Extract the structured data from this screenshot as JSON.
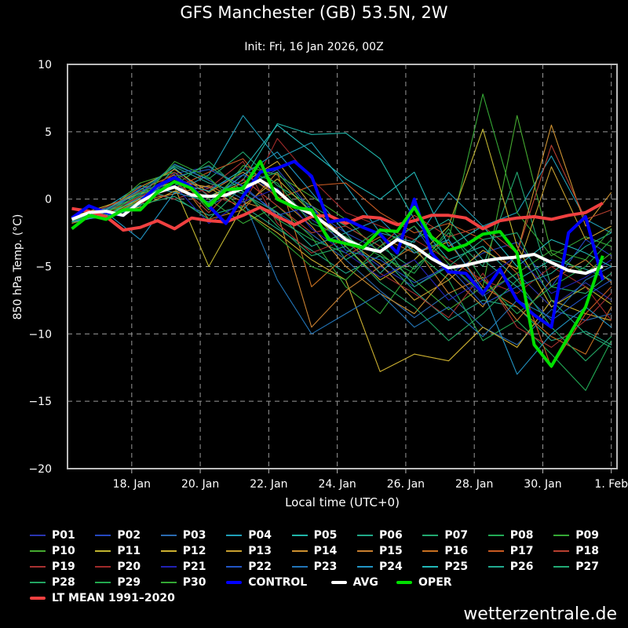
{
  "title": "GFS Manchester (GB) 53.5N, 2W",
  "subtitle": "Init: Fri, 16 Jan 2026, 00Z",
  "watermark": "wetterzentrale.de",
  "chart_data": {
    "type": "line",
    "xlabel": "Local time (UTC+0)",
    "ylabel": "850 hPa Temp. (°C)",
    "ylim": [
      -20,
      10
    ],
    "yticks": [
      10,
      5,
      0,
      -5,
      -10,
      -15,
      -20
    ],
    "xlim": [
      "2026-01-16T03",
      "2026-02-01T04"
    ],
    "xticks": [
      {
        "date": "2026-01-18T00",
        "label": "18. Jan"
      },
      {
        "date": "2026-01-20T00",
        "label": "20. Jan"
      },
      {
        "date": "2026-01-22T00",
        "label": "22. Jan"
      },
      {
        "date": "2026-01-24T00",
        "label": "24. Jan"
      },
      {
        "date": "2026-01-26T00",
        "label": "26. Jan"
      },
      {
        "date": "2026-01-28T00",
        "label": "28. Jan"
      },
      {
        "date": "2026-01-30T00",
        "label": "30. Jan"
      },
      {
        "date": "2026-02-01T00",
        "label": "1. Feb"
      }
    ],
    "grid": true,
    "legend_position": "bottom",
    "main_x": [
      "2026-01-16T06",
      "2026-01-16T18",
      "2026-01-17T06",
      "2026-01-17T18",
      "2026-01-18T06",
      "2026-01-18T18",
      "2026-01-19T06",
      "2026-01-19T18",
      "2026-01-20T06",
      "2026-01-20T18",
      "2026-01-21T06",
      "2026-01-21T18",
      "2026-01-22T06",
      "2026-01-22T18",
      "2026-01-23T06",
      "2026-01-23T18",
      "2026-01-24T06",
      "2026-01-24T18",
      "2026-01-25T06",
      "2026-01-25T18",
      "2026-01-26T06",
      "2026-01-26T18",
      "2026-01-27T06",
      "2026-01-27T18",
      "2026-01-28T06",
      "2026-01-28T18",
      "2026-01-29T06",
      "2026-01-29T18",
      "2026-01-30T06",
      "2026-01-30T18",
      "2026-01-31T06",
      "2026-01-31T18"
    ],
    "member_x": [
      "2026-01-16T06",
      "2026-01-17T06",
      "2026-01-18T06",
      "2026-01-19T06",
      "2026-01-20T06",
      "2026-01-21T06",
      "2026-01-22T06",
      "2026-01-23T06",
      "2026-01-24T06",
      "2026-01-25T06",
      "2026-01-26T06",
      "2026-01-27T06",
      "2026-01-28T06",
      "2026-01-29T06",
      "2026-01-30T06",
      "2026-01-31T06",
      "2026-02-01T00"
    ],
    "series": [
      {
        "name": "P01",
        "color": "#2a35b0",
        "values": [
          -1.6,
          -1.2,
          0.2,
          1.5,
          0.8,
          1.8,
          0.5,
          -1.5,
          -3.2,
          -5.0,
          -6.5,
          -4.8,
          -7.2,
          -5.5,
          -8.0,
          -6.2,
          -7.5
        ]
      },
      {
        "name": "P02",
        "color": "#2548c0",
        "values": [
          -1.4,
          -0.8,
          -0.3,
          1.9,
          2.4,
          0.9,
          2.2,
          -0.8,
          -2.5,
          -3.8,
          -2.0,
          -5.6,
          -4.0,
          -3.2,
          -6.5,
          -3.0,
          -4.2
        ]
      },
      {
        "name": "P03",
        "color": "#2a6ab0",
        "values": [
          -1.5,
          -1.0,
          0.6,
          1.2,
          -0.5,
          0.8,
          -1.0,
          -2.6,
          -4.5,
          -6.8,
          -8.8,
          -7.0,
          -9.5,
          -10.8,
          -8.2,
          -9.0,
          -8.5
        ]
      },
      {
        "name": "P04",
        "color": "#1f9fb8",
        "values": [
          -1.7,
          -0.6,
          1.0,
          0.5,
          1.8,
          6.2,
          3.0,
          4.2,
          1.0,
          -2.5,
          -3.2,
          0.5,
          -2.0,
          -1.0,
          3.2,
          -1.5,
          -2.5
        ]
      },
      {
        "name": "P05",
        "color": "#20b5a8",
        "values": [
          -1.3,
          -1.4,
          -0.5,
          2.3,
          0.2,
          1.4,
          5.6,
          4.8,
          4.9,
          3.0,
          -1.5,
          -4.5,
          -3.5,
          -6.0,
          -4.5,
          -5.2,
          -6.0
        ]
      },
      {
        "name": "P06",
        "color": "#20a888",
        "values": [
          -1.8,
          -1.1,
          0.8,
          0.0,
          -1.2,
          -0.5,
          -2.2,
          -3.8,
          -5.5,
          -4.2,
          -6.8,
          -9.0,
          -7.5,
          -8.0,
          -10.5,
          -9.8,
          -10.8
        ]
      },
      {
        "name": "P07",
        "color": "#22a870",
        "values": [
          -1.5,
          -0.9,
          0.3,
          2.5,
          1.5,
          3.5,
          1.0,
          -0.5,
          -2.0,
          -3.5,
          -5.2,
          -2.5,
          -5.0,
          2.0,
          -6.5,
          -7.0,
          -5.5
        ]
      },
      {
        "name": "P08",
        "color": "#22aa55",
        "values": [
          -1.6,
          -1.3,
          -0.2,
          1.0,
          2.8,
          0.5,
          -1.5,
          -3.0,
          -4.0,
          -2.2,
          -3.8,
          -6.0,
          -10.5,
          -9.0,
          -11.5,
          -14.2,
          -10.5
        ]
      },
      {
        "name": "P09",
        "color": "#35a835",
        "values": [
          -1.4,
          -0.7,
          0.5,
          1.6,
          0.0,
          -1.8,
          -0.5,
          -2.8,
          -6.5,
          -8.5,
          -5.0,
          -3.0,
          7.8,
          -1.0,
          -4.2,
          -2.8,
          -3.5
        ]
      },
      {
        "name": "P10",
        "color": "#45aa30",
        "values": [
          -1.5,
          -1.0,
          1.2,
          2.0,
          -0.8,
          2.5,
          1.8,
          0.2,
          -1.5,
          -4.0,
          -6.0,
          -8.2,
          -6.5,
          6.2,
          -4.0,
          -5.5,
          -4.0
        ]
      },
      {
        "name": "P11",
        "color": "#c0b530",
        "values": [
          -1.7,
          -1.2,
          0.0,
          0.9,
          -5.0,
          -0.5,
          1.5,
          -1.0,
          -3.5,
          -6.0,
          -4.5,
          -2.0,
          5.2,
          -3.5,
          -8.0,
          -6.5,
          -7.8
        ]
      },
      {
        "name": "P12",
        "color": "#ccb030",
        "values": [
          -1.3,
          -0.5,
          0.4,
          1.3,
          0.9,
          -0.8,
          -2.5,
          -4.5,
          -6.0,
          -12.8,
          -11.5,
          -12.0,
          -9.5,
          -11.0,
          -7.5,
          -8.5,
          -9.0
        ]
      },
      {
        "name": "P13",
        "color": "#c8a030",
        "values": [
          -1.6,
          -1.1,
          -0.6,
          0.6,
          0.2,
          1.2,
          2.8,
          -0.5,
          -3.0,
          -4.8,
          -7.5,
          -6.0,
          -3.8,
          -5.2,
          2.4,
          -3.0,
          -2.0
        ]
      },
      {
        "name": "P14",
        "color": "#cc9030",
        "values": [
          -1.4,
          -0.8,
          0.9,
          2.2,
          0.5,
          2.0,
          0.2,
          -2.0,
          -5.0,
          -7.0,
          -8.5,
          -5.5,
          -8.0,
          -4.0,
          5.5,
          -2.0,
          0.5
        ]
      },
      {
        "name": "P15",
        "color": "#c88030",
        "values": [
          -1.5,
          -1.3,
          -0.1,
          0.4,
          1.0,
          -0.2,
          -1.0,
          -9.5,
          -6.8,
          -5.0,
          -3.5,
          -7.0,
          -5.8,
          -9.0,
          -6.0,
          -4.5,
          -6.2
        ]
      },
      {
        "name": "P16",
        "color": "#c87020",
        "values": [
          -1.8,
          -0.9,
          0.7,
          1.8,
          -1.5,
          -0.8,
          2.0,
          -6.5,
          -4.2,
          -2.8,
          -4.0,
          -3.2,
          -6.5,
          -8.0,
          -10.2,
          -11.5,
          -8.0
        ]
      },
      {
        "name": "P17",
        "color": "#c85a22",
        "values": [
          -1.5,
          -1.0,
          0.2,
          0.8,
          2.0,
          3.0,
          0.0,
          1.0,
          1.2,
          -1.0,
          -2.5,
          -1.8,
          -3.0,
          -5.5,
          -12.5,
          -8.5,
          -6.5
        ]
      },
      {
        "name": "P18",
        "color": "#b84030",
        "values": [
          -1.6,
          -1.2,
          -0.4,
          1.4,
          -1.0,
          1.5,
          -0.5,
          -2.5,
          -2.0,
          -3.5,
          -1.2,
          -2.8,
          -2.0,
          -4.0,
          4.0,
          -1.5,
          -0.8
        ]
      },
      {
        "name": "P19",
        "color": "#a83232",
        "values": [
          -1.4,
          -0.6,
          0.6,
          0.0,
          0.8,
          2.8,
          -1.8,
          -4.0,
          -3.0,
          -5.5,
          -7.0,
          -8.8,
          -5.5,
          -9.5,
          -11.0,
          -9.0,
          -7.0
        ]
      },
      {
        "name": "P20",
        "color": "#a02a2a",
        "values": [
          -1.7,
          -1.1,
          0.1,
          2.0,
          0.3,
          -0.5,
          4.5,
          1.5,
          -1.0,
          -2.0,
          -3.0,
          -4.5,
          -6.0,
          -7.0,
          -5.0,
          -6.5,
          -9.0
        ]
      },
      {
        "name": "P21",
        "color": "#2222b5",
        "values": [
          -1.5,
          -0.9,
          0.8,
          1.0,
          -1.8,
          -0.2,
          0.8,
          -2.2,
          -4.0,
          -5.8,
          -4.5,
          -7.5,
          -6.0,
          -4.2,
          -7.0,
          -5.8,
          -4.5
        ]
      },
      {
        "name": "P22",
        "color": "#2255c5",
        "values": [
          -1.6,
          -1.3,
          -0.3,
          1.7,
          2.2,
          1.0,
          -1.2,
          -0.5,
          -3.8,
          -4.5,
          -6.2,
          -5.0,
          -7.8,
          -6.5,
          -9.0,
          -7.2,
          -6.0
        ]
      },
      {
        "name": "P23",
        "color": "#2275b8",
        "values": [
          -1.4,
          -0.7,
          0.4,
          2.6,
          1.4,
          0.0,
          -6.0,
          -10.0,
          -8.5,
          -7.0,
          -9.5,
          -8.0,
          -10.2,
          -7.5,
          -8.8,
          -6.0,
          -5.0
        ]
      },
      {
        "name": "P24",
        "color": "#2295c5",
        "values": [
          -1.5,
          -1.0,
          -3.0,
          0.5,
          -0.2,
          1.8,
          3.5,
          0.5,
          -2.5,
          -1.5,
          -4.0,
          -3.0,
          -6.8,
          -13.0,
          -10.0,
          -8.0,
          -9.5
        ]
      },
      {
        "name": "P25",
        "color": "#22b8b8",
        "values": [
          -1.7,
          -1.2,
          0.1,
          1.2,
          0.6,
          2.2,
          5.5,
          3.5,
          1.5,
          0.0,
          2.0,
          -3.5,
          -2.0,
          -5.0,
          -3.0,
          -4.0,
          -5.0
        ]
      },
      {
        "name": "P26",
        "color": "#22aa90",
        "values": [
          -1.3,
          -0.8,
          0.7,
          2.4,
          1.2,
          0.4,
          -1.0,
          -3.5,
          -2.5,
          -5.5,
          -3.0,
          -1.5,
          -4.5,
          -6.5,
          -5.5,
          -3.5,
          -2.5
        ]
      },
      {
        "name": "P27",
        "color": "#22aa75",
        "values": [
          -1.6,
          -1.1,
          -0.4,
          0.2,
          -1.5,
          1.0,
          2.0,
          -1.0,
          -4.5,
          -3.0,
          -6.5,
          -5.0,
          -3.0,
          -2.5,
          -7.5,
          -10.0,
          -11.0
        ]
      },
      {
        "name": "P28",
        "color": "#22a462",
        "values": [
          -1.5,
          -0.9,
          0.3,
          1.5,
          2.5,
          0.6,
          -2.0,
          -4.2,
          -3.5,
          -6.2,
          -8.0,
          -10.5,
          -8.5,
          -6.0,
          -9.5,
          -12.0,
          -10.2
        ]
      },
      {
        "name": "P29",
        "color": "#22a84e",
        "values": [
          -1.4,
          -1.3,
          0.5,
          0.8,
          -0.3,
          2.2,
          1.2,
          -1.8,
          -2.8,
          -4.2,
          -5.5,
          -2.2,
          -6.0,
          -8.5,
          -6.5,
          -5.0,
          -3.0
        ]
      },
      {
        "name": "P30",
        "color": "#33a633",
        "values": [
          -1.6,
          -0.9,
          -0.2,
          2.8,
          1.6,
          -0.8,
          -2.8,
          -5.0,
          -6.0,
          -3.5,
          -2.0,
          -4.8,
          -7.0,
          -5.5,
          -3.8,
          -4.5,
          -2.2
        ]
      },
      {
        "name": "CONTROL",
        "color": "#0000ff",
        "thick": true,
        "main": true,
        "values": [
          -1.4,
          -0.5,
          -1.0,
          -1.2,
          -0.2,
          1.0,
          1.6,
          0.9,
          -0.5,
          -1.8,
          0.2,
          2.0,
          2.3,
          2.8,
          1.7,
          -1.7,
          -1.5,
          -2.1,
          -2.6,
          -4.0,
          0.0,
          -4.0,
          -5.4,
          -5.5,
          -7.0,
          -5.2,
          -7.5,
          -8.6,
          -9.5,
          -2.5,
          -1.3,
          -6.0
        ]
      },
      {
        "name": "AVG",
        "color": "#ffffff",
        "thick": true,
        "main": true,
        "values": [
          -1.5,
          -1.0,
          -0.9,
          -1.2,
          -0.2,
          0.5,
          0.9,
          0.3,
          0.2,
          0.3,
          0.8,
          1.4,
          0.6,
          -0.5,
          -1.1,
          -2.0,
          -3.0,
          -3.6,
          -3.9,
          -3.0,
          -3.5,
          -4.4,
          -5.1,
          -4.9,
          -4.6,
          -4.4,
          -4.3,
          -4.1,
          -4.7,
          -5.3,
          -5.5,
          -5.0
        ]
      },
      {
        "name": "OPER",
        "color": "#00e000",
        "thick": true,
        "main": true,
        "values": [
          -2.2,
          -1.2,
          -1.5,
          -0.8,
          -0.8,
          0.5,
          1.3,
          0.8,
          -0.5,
          0.7,
          0.8,
          2.8,
          0.0,
          -0.6,
          -0.8,
          -3.0,
          -3.3,
          -3.6,
          -2.3,
          -2.4,
          -0.6,
          -2.8,
          -3.8,
          -3.4,
          -2.6,
          -2.4,
          -4.0,
          -10.8,
          -12.4,
          -10.2,
          -8.0,
          -4.2
        ]
      },
      {
        "name": "LT MEAN 1991-2020",
        "color": "#f04040",
        "thick": true,
        "main": true,
        "values": [
          -0.7,
          -0.9,
          -1.3,
          -2.3,
          -2.1,
          -1.6,
          -2.2,
          -1.4,
          -1.6,
          -1.7,
          -1.2,
          -0.6,
          -1.3,
          -1.9,
          -1.3,
          -1.2,
          -1.8,
          -1.3,
          -1.4,
          -1.9,
          -1.6,
          -1.2,
          -1.2,
          -1.4,
          -2.2,
          -1.6,
          -1.4,
          -1.3,
          -1.5,
          -1.2,
          -1.0,
          -0.3
        ]
      }
    ]
  }
}
